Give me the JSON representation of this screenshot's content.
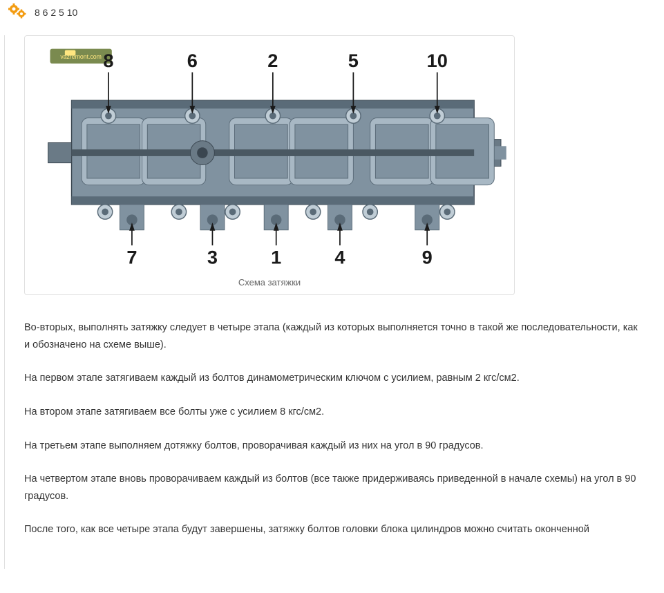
{
  "header": {
    "numbers": "8 6 2 5 10"
  },
  "diagram": {
    "caption": "Схема затяжки",
    "watermark": "vazremont.com",
    "top_labels": [
      "8",
      "6",
      "2",
      "5",
      "10"
    ],
    "bottom_labels": [
      "7",
      "3",
      "1",
      "4",
      "9"
    ],
    "top_x_positions": [
      120,
      245,
      365,
      485,
      610
    ],
    "bottom_x_positions": [
      155,
      275,
      370,
      465,
      595
    ],
    "colors": {
      "head_body": "#8092a0",
      "head_dark": "#5a6b78",
      "head_light": "#a8b8c4",
      "bolt_circle": "#c0cdd6",
      "label_text": "#1a1a1a",
      "pointer": "#1a1a1a",
      "shaft": "#515e68",
      "watermark_bg": "#7a8a4f",
      "watermark_text": "#ffe680"
    },
    "label_fontsize": 28,
    "label_fontweight": "bold"
  },
  "paragraphs": [
    "Во-вторых, выполнять затяжку следует в четыре этапа (каждый из которых выполняется точно в такой же последовательности, как и обозначено на схеме выше).",
    "На первом этапе затягиваем каждый из болтов динамометрическим ключом с усилием, равным 2 кгс/см2.",
    "На втором этапе затягиваем все болты уже с усилием 8 кгс/см2.",
    "На третьем этапе выполняем дотяжку болтов, проворачивая каждый из них на угол в 90 градусов.",
    "На четвертом этапе вновь проворачиваем каждый из болтов (все также придерживаясь приведенной в начале схемы) на угол в 90 градусов.",
    "После того, как все четыре этапа будут завершены, затяжку болтов головки блока цилиндров можно считать оконченной"
  ]
}
